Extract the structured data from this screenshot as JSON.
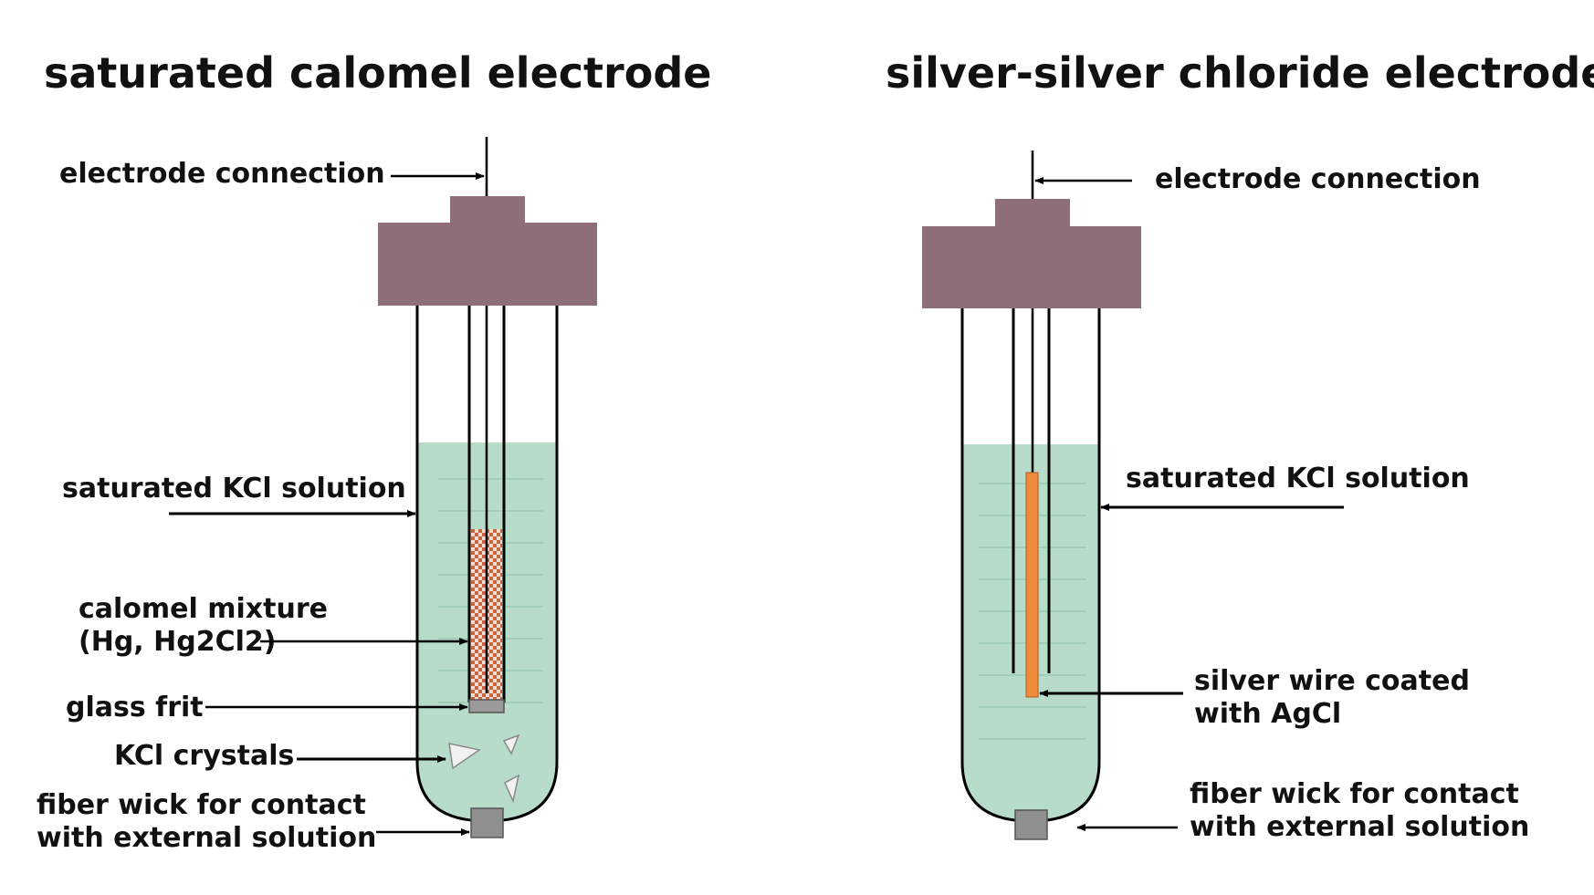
{
  "colors": {
    "cap": "#8e6f78",
    "solution": "#b7dcc9",
    "calomel": "#c8673d",
    "wire": "#f08a3c",
    "wick": "#8f8f8f"
  },
  "left": {
    "title": "saturated calomel electrode",
    "labels": {
      "connection": "electrode connection",
      "kcl_solution": "saturated KCl solution",
      "calomel_line1": "calomel mixture",
      "calomel_line2": "(Hg, Hg2Cl2)",
      "glass_frit": "glass frit",
      "kcl_crystals": "KCl crystals",
      "wick_line1": "fiber wick for contact",
      "wick_line2": "with external solution"
    }
  },
  "right": {
    "title": "silver-silver chloride electrode",
    "labels": {
      "connection": "electrode connection",
      "kcl_solution": "saturated KCl solution",
      "wire_line1": "silver wire coated",
      "wire_line2": "with AgCl",
      "wick_line1": "fiber wick for contact",
      "wick_line2": "with external solution"
    }
  }
}
